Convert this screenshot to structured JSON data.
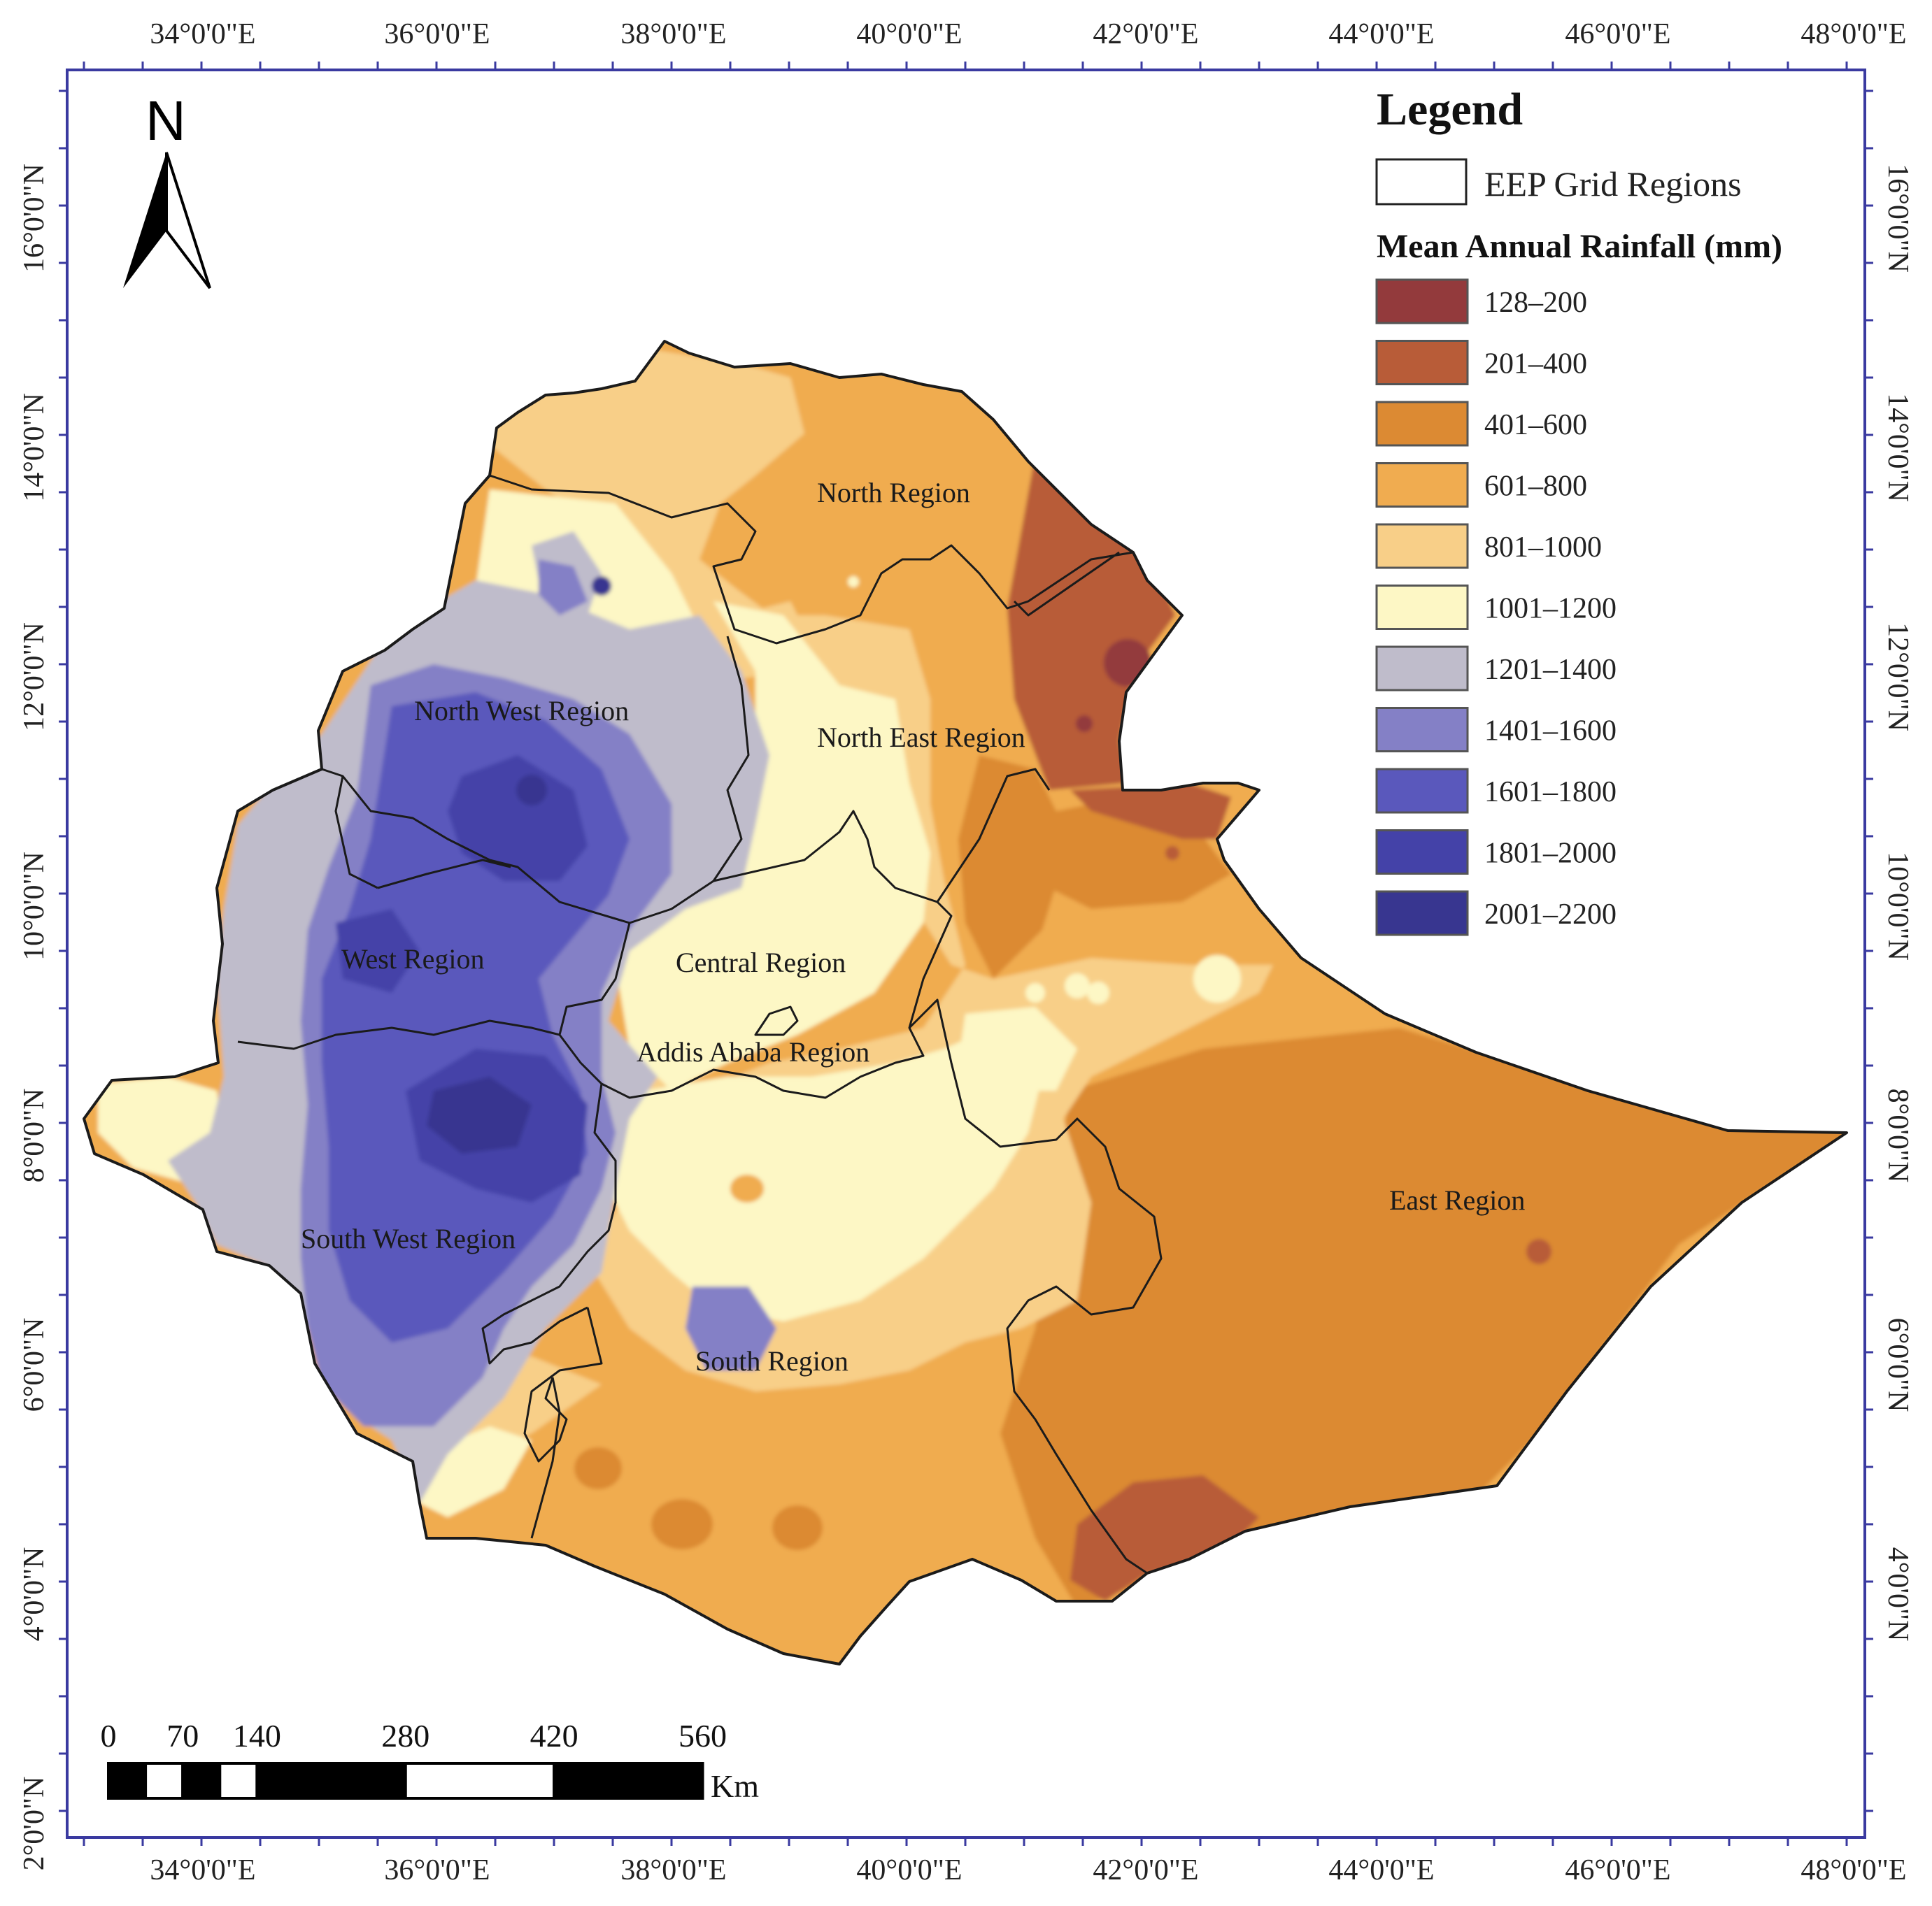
{
  "axes": {
    "top_labels": [
      "34°0'0\"E",
      "36°0'0\"E",
      "38°0'0\"E",
      "40°0'0\"E",
      "42°0'0\"E",
      "44°0'0\"E",
      "46°0'0\"E",
      "48°0'0\"E"
    ],
    "bottom_labels": [
      "34°0'0\"E",
      "36°0'0\"E",
      "38°0'0\"E",
      "40°0'0\"E",
      "42°0'0\"E",
      "44°0'0\"E",
      "46°0'0\"E",
      "48°0'0\"E"
    ],
    "left_labels": [
      "16°0'0\"N",
      "14°0'0\"N",
      "12°0'0\"N",
      "10°0'0\"N",
      "8°0'0\"N",
      "6°0'0\"N",
      "4°0'0\"N",
      "2°0'0\"N"
    ],
    "right_labels": [
      "16°0'0\"N",
      "14°0'0\"N",
      "12°0'0\"N",
      "10°0'0\"N",
      "8°0'0\"N",
      "6°0'0\"N",
      "4°0'0\"N"
    ],
    "frame_color": "#3a3aa0"
  },
  "north_arrow": {
    "label": "N"
  },
  "legend": {
    "title": "Legend",
    "boundary_item": "EEP Grid Regions",
    "rainfall_title": "Mean Annual Rainfall (mm)",
    "classes": [
      {
        "label": "128–200",
        "color": "#933a3c"
      },
      {
        "label": "201–400",
        "color": "#b85c38"
      },
      {
        "label": "401–600",
        "color": "#dc8a33"
      },
      {
        "label": "601–800",
        "color": "#f0ac50"
      },
      {
        "label": "801–1000",
        "color": "#f8cf88"
      },
      {
        "label": "1001–1200",
        "color": "#fdf7c5"
      },
      {
        "label": "1201–1400",
        "color": "#bfbccb"
      },
      {
        "label": "1401–1600",
        "color": "#8480c6"
      },
      {
        "label": "1601–1800",
        "color": "#5a58bc"
      },
      {
        "label": "1801–2000",
        "color": "#4442a8"
      },
      {
        "label": "2001–2200",
        "color": "#383690"
      }
    ]
  },
  "regions": {
    "north": "North Region",
    "north_west": "North West Region",
    "north_east": "North East Region",
    "west": "West Region",
    "central": "Central Region",
    "addis": "Addis Ababa Region",
    "east": "East Region",
    "south_west": "South West Region",
    "south": "South Region"
  },
  "scale_bar": {
    "ticks": [
      "0",
      "70",
      "140",
      "280",
      "420",
      "560"
    ],
    "unit": "Km"
  }
}
